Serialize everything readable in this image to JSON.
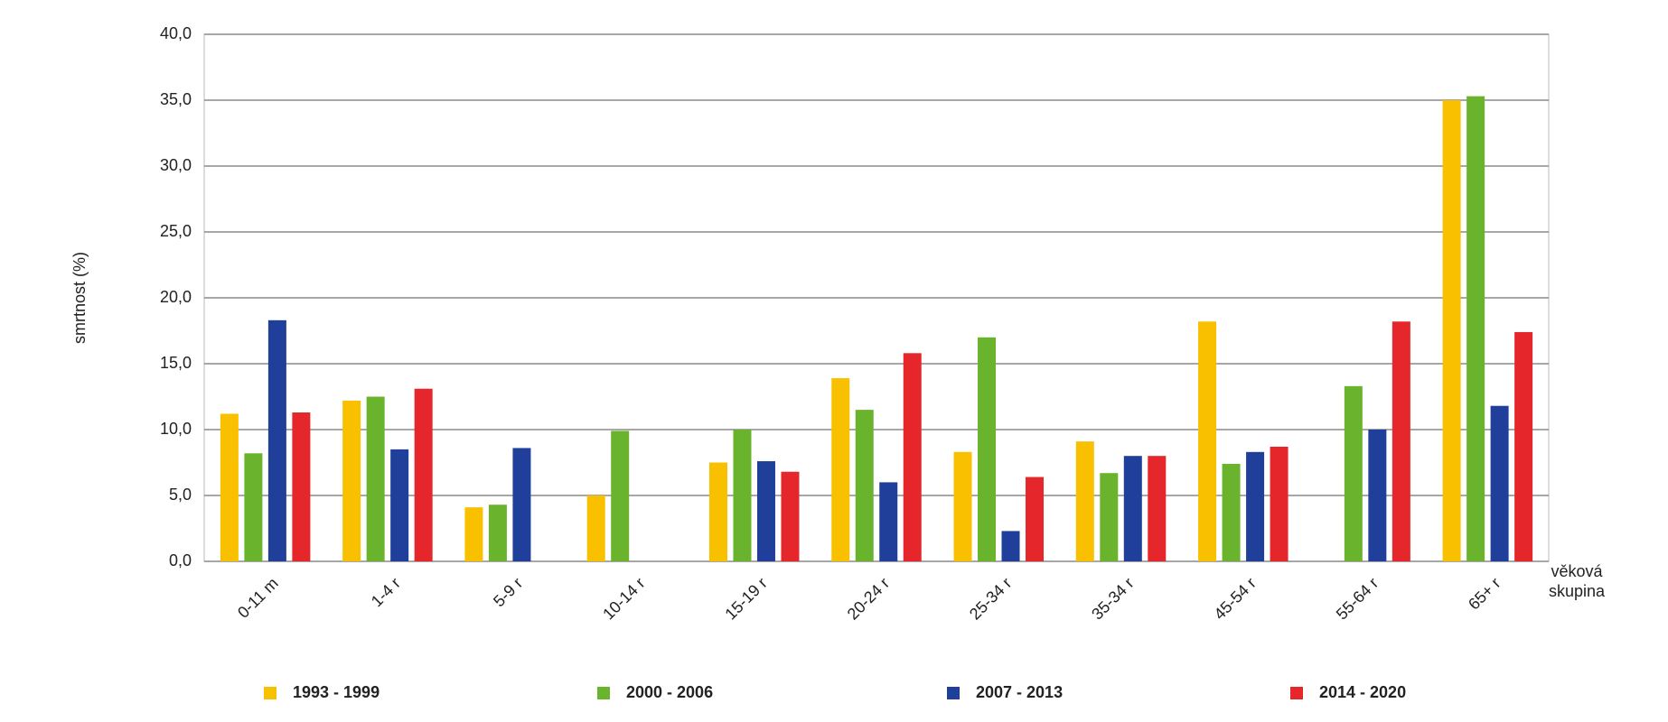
{
  "chart_data": {
    "type": "bar",
    "y_label": "smrtnost (%)",
    "x_label": "věková skupina",
    "categories": [
      "0-11 m",
      "1-4 r",
      "5-9 r",
      "10-14 r",
      "15-19 r",
      "20-24 r",
      "25-34 r",
      "35-34 r",
      "45-54 r",
      "55-64 r",
      "65+ r"
    ],
    "series": [
      {
        "name": "1993 - 1999",
        "color": "#f9c000",
        "values": [
          11.2,
          12.2,
          4.1,
          5.0,
          7.5,
          13.9,
          8.3,
          9.1,
          18.2,
          null,
          35.0
        ]
      },
      {
        "name": "2000 - 2006",
        "color": "#6ab42d",
        "values": [
          8.2,
          12.5,
          4.3,
          9.9,
          10.0,
          11.5,
          17.0,
          6.7,
          7.4,
          13.3,
          35.3
        ]
      },
      {
        "name": "2007 - 2013",
        "color": "#1f3f9a",
        "values": [
          18.3,
          8.5,
          8.6,
          null,
          7.6,
          6.0,
          2.3,
          8.0,
          8.3,
          10.0,
          11.8
        ]
      },
      {
        "name": "2014 - 2020",
        "color": "#e5262a",
        "values": [
          11.3,
          13.1,
          null,
          null,
          6.8,
          15.8,
          6.4,
          8.0,
          8.7,
          18.2,
          17.4
        ]
      }
    ],
    "ylim": [
      0,
      40
    ],
    "yticks": [
      {
        "value": 0,
        "label": "0,0"
      },
      {
        "value": 5,
        "label": "5,0"
      },
      {
        "value": 10,
        "label": "10,0"
      },
      {
        "value": 15,
        "label": "15,0"
      },
      {
        "value": 20,
        "label": "20,0"
      },
      {
        "value": 25,
        "label": "25,0"
      },
      {
        "value": 30,
        "label": "30,0"
      },
      {
        "value": 35,
        "label": "35,0"
      },
      {
        "value": 40,
        "label": "40,0"
      }
    ],
    "grid": true,
    "legend": "bottom"
  }
}
